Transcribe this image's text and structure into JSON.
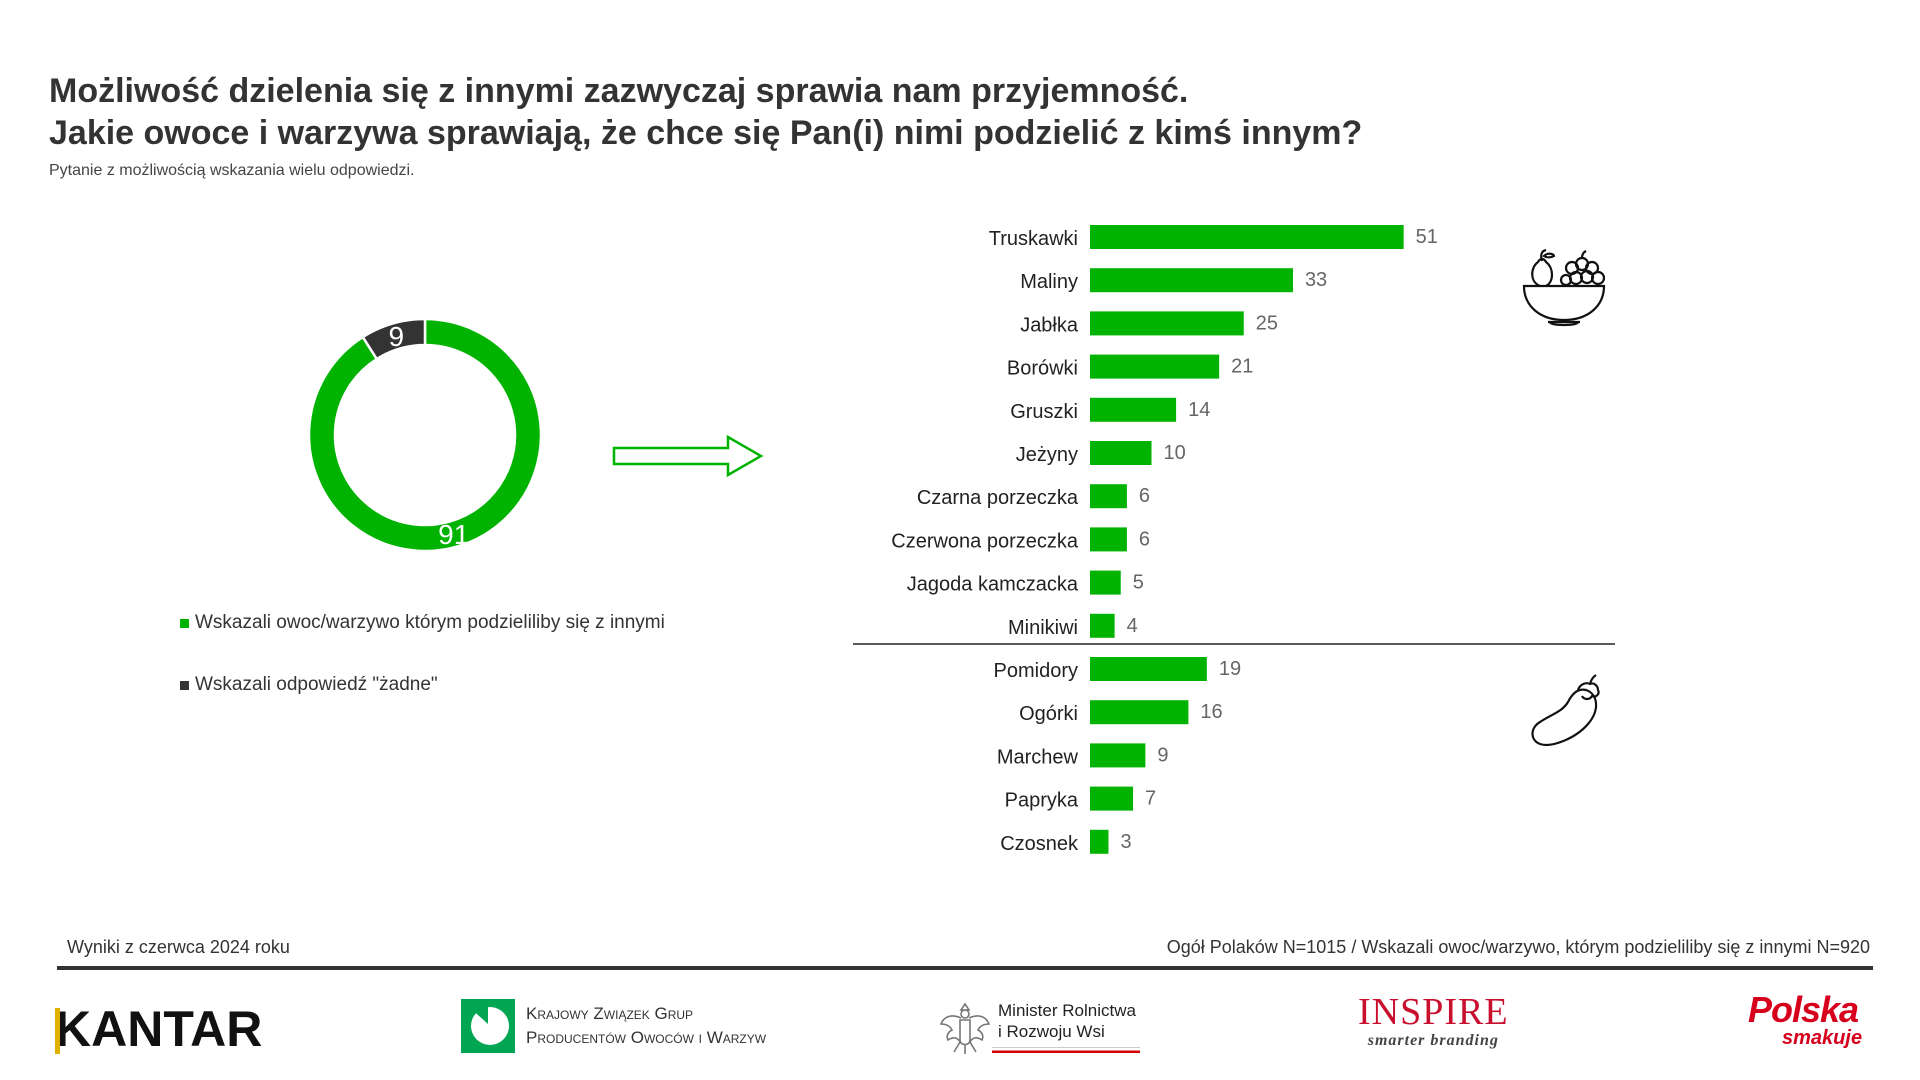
{
  "header": {
    "title_line1": "Możliwość dzielenia się z innymi zazwyczaj sprawia nam przyjemność.",
    "title_line2": "Jakie owoce i warzywa sprawiają, że chce się Pan(i) nimi podzielić z kimś innym?",
    "subtitle": "Pytanie z możliwością wskazania wielu odpowiedzi."
  },
  "colors": {
    "green": "#00b300",
    "dark": "#333333",
    "separator": "#222222"
  },
  "chart_data": [
    {
      "type": "pie",
      "variant": "donut",
      "slices": [
        {
          "label": "Wskazali owoc/warzywo którym podzieliliby się z innymi",
          "value": 91,
          "color": "#00b300"
        },
        {
          "label": "Wskazali odpowiedź \"żadne\"",
          "value": 9,
          "color": "#333333"
        }
      ]
    },
    {
      "type": "bar",
      "orientation": "horizontal",
      "groups": [
        {
          "icon": "fruit-bowl-icon",
          "categories": [
            "Truskawki",
            "Maliny",
            "Jabłka",
            "Borówki",
            "Gruszki",
            "Jeżyny",
            "Czarna porzeczka",
            "Czerwona porzeczka",
            "Jagoda kamczacka",
            "Minikiwi"
          ],
          "values": [
            51,
            33,
            25,
            21,
            14,
            10,
            6,
            6,
            5,
            4
          ]
        },
        {
          "icon": "eggplant-icon",
          "categories": [
            "Pomidory",
            "Ogórki",
            "Marchew",
            "Papryka",
            "Czosnek"
          ],
          "values": [
            19,
            16,
            9,
            7,
            3
          ]
        }
      ],
      "color": "#00b300"
    }
  ],
  "legend": {
    "items": [
      {
        "label": "Wskazali owoc/warzywo którym podzieliliby się z innymi",
        "color": "#00b300"
      },
      {
        "label": "Wskazali odpowiedź \"żadne\"",
        "color": "#333333"
      }
    ]
  },
  "footer": {
    "left": "Wyniki z czerwca 2024 roku",
    "right": "Ogół Polaków N=1015 / Wskazali owoc/warzywo, którym podzieliliby się z innymi N=920"
  },
  "logos": {
    "kantar": "KANTAR",
    "kzgp_line1": "Krajowy Związek Grup",
    "kzgp_line2": "Producentów Owoców i Warzyw",
    "minister_line1": "Minister Rolnictwa",
    "minister_line2": "i Rozwoju Wsi",
    "inspire": "INSPIRE",
    "inspire_tag": "smarter branding",
    "polska_big": "Polska",
    "polska_small": "smakuje"
  }
}
